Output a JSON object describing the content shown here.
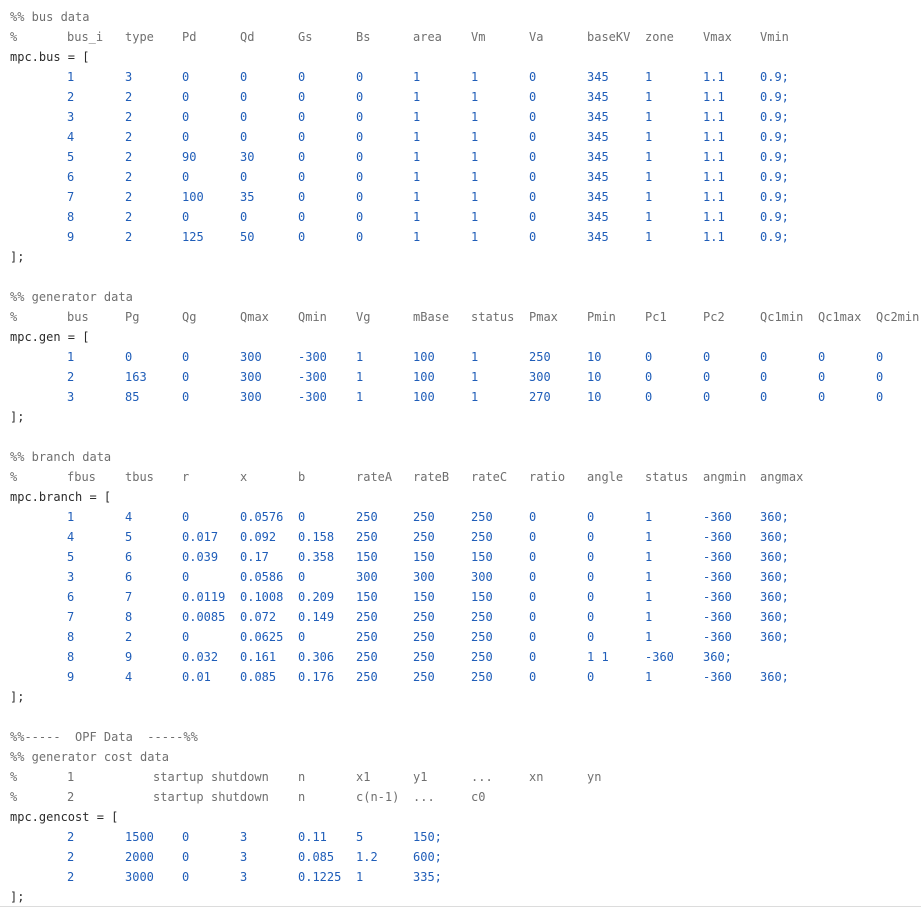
{
  "bus_section": {
    "header": "%% bus data",
    "columns_line": [
      "%",
      "bus_i",
      "type",
      "Pd",
      "Qd",
      "Gs",
      "Bs",
      "area",
      "Vm",
      "Va",
      "baseKV",
      "zone",
      "Vmax",
      "Vmin"
    ],
    "open": "mpc.bus = [",
    "rows": [
      [
        "1",
        "3",
        "0",
        "0",
        "0",
        "0",
        "1",
        "1",
        "0",
        "345",
        "1",
        "1.1",
        "0.9;"
      ],
      [
        "2",
        "2",
        "0",
        "0",
        "0",
        "0",
        "1",
        "1",
        "0",
        "345",
        "1",
        "1.1",
        "0.9;"
      ],
      [
        "3",
        "2",
        "0",
        "0",
        "0",
        "0",
        "1",
        "1",
        "0",
        "345",
        "1",
        "1.1",
        "0.9;"
      ],
      [
        "4",
        "2",
        "0",
        "0",
        "0",
        "0",
        "1",
        "1",
        "0",
        "345",
        "1",
        "1.1",
        "0.9;"
      ],
      [
        "5",
        "2",
        "90",
        "30",
        "0",
        "0",
        "1",
        "1",
        "0",
        "345",
        "1",
        "1.1",
        "0.9;"
      ],
      [
        "6",
        "2",
        "0",
        "0",
        "0",
        "0",
        "1",
        "1",
        "0",
        "345",
        "1",
        "1.1",
        "0.9;"
      ],
      [
        "7",
        "2",
        "100",
        "35",
        "0",
        "0",
        "1",
        "1",
        "0",
        "345",
        "1",
        "1.1",
        "0.9;"
      ],
      [
        "8",
        "2",
        "0",
        "0",
        "0",
        "0",
        "1",
        "1",
        "0",
        "345",
        "1",
        "1.1",
        "0.9;"
      ],
      [
        "9",
        "2",
        "125",
        "50",
        "0",
        "0",
        "1",
        "1",
        "0",
        "345",
        "1",
        "1.1",
        "0.9;"
      ]
    ],
    "close": "];"
  },
  "gen_section": {
    "header": "%% generator data",
    "columns_line": [
      "%",
      "bus",
      "Pg",
      "Qg",
      "Qmax",
      "Qmin",
      "Vg",
      "mBase",
      "status",
      "Pmax",
      "Pmin",
      "Pc1",
      "Pc2",
      "Qc1min",
      "Qc1max",
      "Qc2min"
    ],
    "open": "mpc.gen = [",
    "rows": [
      [
        "1",
        "0",
        "0",
        "300",
        "-300",
        "1",
        "100",
        "1",
        "250",
        "10",
        "0",
        "0",
        "0",
        "0",
        "0"
      ],
      [
        "2",
        "163",
        "0",
        "300",
        "-300",
        "1",
        "100",
        "1",
        "300",
        "10",
        "0",
        "0",
        "0",
        "0",
        "0"
      ],
      [
        "3",
        "85",
        "0",
        "300",
        "-300",
        "1",
        "100",
        "1",
        "270",
        "10",
        "0",
        "0",
        "0",
        "0",
        "0"
      ]
    ],
    "close": "];"
  },
  "branch_section": {
    "header": "%% branch data",
    "columns_line": [
      "%",
      "fbus",
      "tbus",
      "r",
      "x",
      "b",
      "rateA",
      "rateB",
      "rateC",
      "ratio",
      "angle",
      "status",
      "angmin",
      "angmax"
    ],
    "open": "mpc.branch = [",
    "rows": [
      [
        "1",
        "4",
        "0",
        "0.0576",
        "0",
        "250",
        "250",
        "250",
        "0",
        "0",
        "1",
        "-360",
        "360;"
      ],
      [
        "4",
        "5",
        "0.017",
        "0.092",
        "0.158",
        "250",
        "250",
        "250",
        "0",
        "0",
        "1",
        "-360",
        "360;"
      ],
      [
        "5",
        "6",
        "0.039",
        "0.17",
        "0.358",
        "150",
        "150",
        "150",
        "0",
        "0",
        "1",
        "-360",
        "360;"
      ],
      [
        "3",
        "6",
        "0",
        "0.0586",
        "0",
        "300",
        "300",
        "300",
        "0",
        "0",
        "1",
        "-360",
        "360;"
      ],
      [
        "6",
        "7",
        "0.0119",
        "0.1008",
        "0.209",
        "150",
        "150",
        "150",
        "0",
        "0",
        "1",
        "-360",
        "360;"
      ],
      [
        "7",
        "8",
        "0.0085",
        "0.072",
        "0.149",
        "250",
        "250",
        "250",
        "0",
        "0",
        "1",
        "-360",
        "360;"
      ],
      [
        "8",
        "2",
        "0",
        "0.0625",
        "0",
        "250",
        "250",
        "250",
        "0",
        "0",
        "1",
        "-360",
        "360;"
      ],
      [
        "8",
        "9",
        "0.032",
        "0.161",
        "0.306",
        "250",
        "250",
        "250",
        "0",
        "1 1",
        "-360",
        "360;"
      ],
      [
        "9",
        "4",
        "0.01",
        "0.085",
        "0.176",
        "250",
        "250",
        "250",
        "0",
        "0",
        "1",
        "-360",
        "360;"
      ]
    ],
    "close": "];"
  },
  "opf_section": {
    "opf_header": "%%-----  OPF Data  -----%%",
    "gencost_header": "%% generator cost data",
    "comment_line_1": [
      "%",
      "1",
      "startup",
      "shutdown",
      "n",
      "x1",
      "y1",
      "...",
      "xn",
      "yn"
    ],
    "comment_line_2": [
      "%",
      "2",
      "startup",
      "shutdown",
      "n",
      "c(n-1)",
      "...",
      "c0"
    ],
    "open": "mpc.gencost = [",
    "rows": [
      [
        "2",
        "1500",
        "0",
        "3",
        "0.11",
        "5",
        "150;"
      ],
      [
        "2",
        "2000",
        "0",
        "3",
        "0.085",
        "1.2",
        "600;"
      ],
      [
        "2",
        "3000",
        "0",
        "3",
        "0.1225",
        "1",
        "335;"
      ]
    ],
    "close": "];"
  },
  "colors": {
    "comment": "#6f6f6f",
    "text": "#2b2b2b",
    "number": "#1f5db8",
    "background": "#ffffff"
  }
}
